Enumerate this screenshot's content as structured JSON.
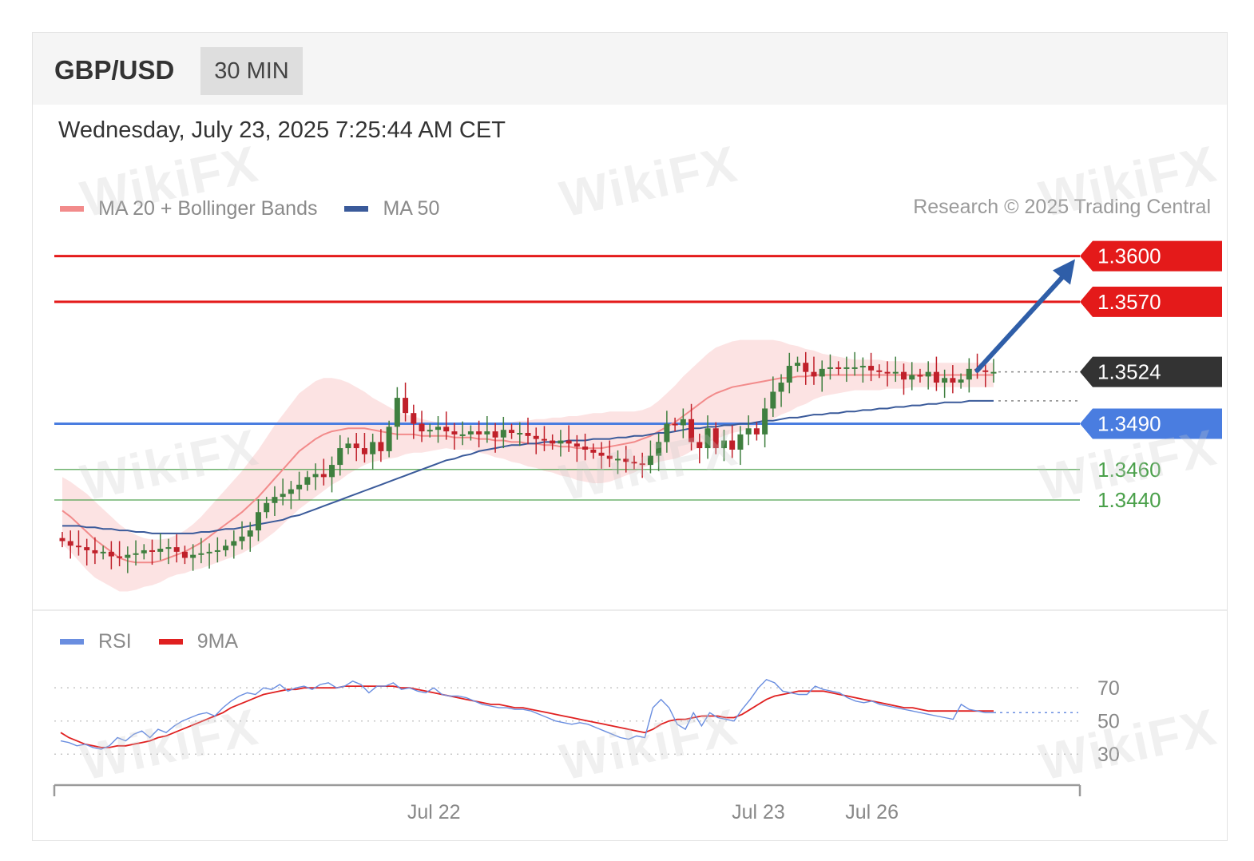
{
  "header": {
    "pair": "GBP/USD",
    "timeframe": "30 MIN"
  },
  "timestamp": "Wednesday, July 23, 2025 7:25:44 AM CET",
  "legend": {
    "ma20": "MA 20 + Bollinger Bands",
    "ma50": "MA 50",
    "credit": "Research © 2025 Trading Central",
    "rsi": "RSI",
    "rsi_ma": "9MA"
  },
  "watermark": "WikiFX",
  "colors": {
    "resistance": "#e41a1a",
    "support": "#4a7de0",
    "minor_support": "#4aa04a",
    "price_tag": "#333333",
    "ma20": "#f28b8b",
    "ma50": "#3a5a9a",
    "band_fill": "#fbdede",
    "candle_up": "#3f7f3f",
    "candle_down": "#c0202a",
    "arrow": "#2f5ea8",
    "rsi": "#6a8ee0",
    "rsi_ma": "#e02020"
  },
  "chart_data": [
    {
      "type": "candlestick",
      "ylim": [
        1.3375,
        1.3615
      ],
      "levels": [
        {
          "label": "1.3600",
          "value": 1.36,
          "kind": "resistance"
        },
        {
          "label": "1.3570",
          "value": 1.357,
          "kind": "resistance"
        },
        {
          "label": "1.3524",
          "value": 1.3524,
          "kind": "current"
        },
        {
          "label": "1.3490",
          "value": 1.349,
          "kind": "support"
        },
        {
          "label": "1.3460",
          "value": 1.346,
          "kind": "minor_support"
        },
        {
          "label": "1.3440",
          "value": 1.344,
          "kind": "minor_support"
        }
      ],
      "ma50_last": 1.3505,
      "arrow": {
        "from": {
          "index": 112,
          "value": 1.3525
        },
        "to": {
          "index": 118,
          "value": 1.3598
        }
      },
      "close": [
        1.3413,
        1.341,
        1.3409,
        1.3407,
        1.3405,
        1.3406,
        1.3403,
        1.3402,
        1.3404,
        1.3405,
        1.3407,
        1.3406,
        1.3408,
        1.3409,
        1.3406,
        1.3402,
        1.3404,
        1.3405,
        1.3406,
        1.3407,
        1.341,
        1.3413,
        1.3416,
        1.342,
        1.3432,
        1.3438,
        1.3442,
        1.3444,
        1.3447,
        1.345,
        1.3455,
        1.3457,
        1.3455,
        1.3463,
        1.3474,
        1.3477,
        1.3474,
        1.347,
        1.3478,
        1.3472,
        1.3488,
        1.3507,
        1.3497,
        1.349,
        1.3485,
        1.3486,
        1.3488,
        1.3485,
        1.3483,
        1.3483,
        1.3485,
        1.3483,
        1.3485,
        1.3481,
        1.3486,
        1.3484,
        1.3484,
        1.3482,
        1.348,
        1.3479,
        1.3477,
        1.3479,
        1.3477,
        1.3475,
        1.3473,
        1.3471,
        1.3469,
        1.3467,
        1.3467,
        1.3465,
        1.3464,
        1.3463,
        1.3469,
        1.3478,
        1.349,
        1.3489,
        1.3493,
        1.3478,
        1.3474,
        1.3487,
        1.3474,
        1.3479,
        1.3473,
        1.3483,
        1.3487,
        1.3483,
        1.35,
        1.3511,
        1.3517,
        1.3528,
        1.353,
        1.3524,
        1.3521,
        1.3526,
        1.3527,
        1.3526,
        1.3527,
        1.3527,
        1.3528,
        1.3525,
        1.3524,
        1.3523,
        1.3524,
        1.3519,
        1.3522,
        1.3521,
        1.3524,
        1.3517,
        1.352,
        1.3517,
        1.3519,
        1.3526,
        1.3525,
        1.3524,
        1.3524
      ],
      "ma20": [
        1.3433,
        1.3429,
        1.3424,
        1.3419,
        1.3414,
        1.341,
        1.3406,
        1.3402,
        1.34,
        1.3399,
        1.3399,
        1.3399,
        1.34,
        1.3402,
        1.3404,
        1.3406,
        1.3409,
        1.3412,
        1.3416,
        1.342,
        1.3424,
        1.3428,
        1.3432,
        1.3437,
        1.3442,
        1.3448,
        1.3454,
        1.346,
        1.3466,
        1.3472,
        1.3476,
        1.348,
        1.3483,
        1.3485,
        1.3486,
        1.3487,
        1.3487,
        1.3487,
        1.3486,
        1.3485,
        1.3484,
        1.3483,
        1.3483,
        1.3483,
        1.3482,
        1.3482,
        1.3482,
        1.3482,
        1.3481,
        1.3481,
        1.3481,
        1.348,
        1.348,
        1.3479,
        1.3479,
        1.3478,
        1.3478,
        1.3477,
        1.3477,
        1.3476,
        1.3476,
        1.3475,
        1.3475,
        1.3474,
        1.3474,
        1.3474,
        1.3474,
        1.3475,
        1.3476,
        1.3477,
        1.3478,
        1.348,
        1.3482,
        1.3485,
        1.3488,
        1.3491,
        1.3495,
        1.3499,
        1.3503,
        1.3507,
        1.351,
        1.3512,
        1.3514,
        1.3515,
        1.3516,
        1.3517,
        1.3518,
        1.3519,
        1.352,
        1.352,
        1.3521,
        1.3521,
        1.3522,
        1.3522,
        1.3522,
        1.3522,
        1.3522,
        1.3522,
        1.3522,
        1.3522,
        1.3522,
        1.3522,
        1.3522,
        1.3522,
        1.3522,
        1.3522,
        1.3522,
        1.3522,
        1.3522,
        1.3522,
        1.3522,
        1.3522,
        1.3522,
        1.3522,
        1.3522
      ],
      "ma50": [
        1.3423,
        1.3423,
        1.3423,
        1.3422,
        1.3422,
        1.3421,
        1.3421,
        1.342,
        1.342,
        1.3419,
        1.3419,
        1.3418,
        1.3418,
        1.3418,
        1.3418,
        1.3418,
        1.3418,
        1.3419,
        1.3419,
        1.342,
        1.3421,
        1.3421,
        1.3422,
        1.3423,
        1.3424,
        1.3425,
        1.3426,
        1.3427,
        1.3429,
        1.343,
        1.3432,
        1.3434,
        1.3436,
        1.3438,
        1.344,
        1.3442,
        1.3444,
        1.3446,
        1.3448,
        1.345,
        1.3452,
        1.3454,
        1.3456,
        1.3458,
        1.346,
        1.3462,
        1.3464,
        1.3466,
        1.3467,
        1.3469,
        1.347,
        1.3472,
        1.3473,
        1.3474,
        1.3475,
        1.3476,
        1.3476,
        1.3477,
        1.3477,
        1.3478,
        1.3478,
        1.3478,
        1.3479,
        1.3479,
        1.3479,
        1.348,
        1.348,
        1.348,
        1.3481,
        1.3481,
        1.3482,
        1.3482,
        1.3483,
        1.3484,
        1.3484,
        1.3485,
        1.3486,
        1.3487,
        1.3487,
        1.3488,
        1.3488,
        1.3489,
        1.3489,
        1.349,
        1.349,
        1.3491,
        1.3492,
        1.3492,
        1.3493,
        1.3494,
        1.3494,
        1.3495,
        1.3496,
        1.3496,
        1.3497,
        1.3497,
        1.3498,
        1.3498,
        1.3499,
        1.3499,
        1.35,
        1.35,
        1.3501,
        1.3501,
        1.3502,
        1.3502,
        1.3503,
        1.3503,
        1.3504,
        1.3504,
        1.3504,
        1.3505,
        1.3505,
        1.3505,
        1.3505
      ],
      "band_width": [
        0.0022,
        0.0023,
        0.0024,
        0.0025,
        0.0025,
        0.0024,
        0.0023,
        0.0022,
        0.002,
        0.0018,
        0.0016,
        0.0015,
        0.0014,
        0.0013,
        0.0013,
        0.0014,
        0.0015,
        0.0017,
        0.0019,
        0.0021,
        0.0023,
        0.0025,
        0.0027,
        0.0029,
        0.0031,
        0.0033,
        0.0035,
        0.0036,
        0.0037,
        0.0038,
        0.0038,
        0.0038,
        0.0037,
        0.0035,
        0.0033,
        0.003,
        0.0027,
        0.0024,
        0.0021,
        0.0019,
        0.0017,
        0.0015,
        0.0013,
        0.0012,
        0.0011,
        0.001,
        0.0009,
        0.0008,
        0.0008,
        0.0008,
        0.0008,
        0.0009,
        0.001,
        0.0011,
        0.0012,
        0.0013,
        0.0014,
        0.0015,
        0.0016,
        0.0017,
        0.0018,
        0.0019,
        0.002,
        0.0021,
        0.0022,
        0.0023,
        0.0023,
        0.0023,
        0.0022,
        0.0021,
        0.002,
        0.0019,
        0.0019,
        0.002,
        0.0022,
        0.0024,
        0.0026,
        0.0027,
        0.0028,
        0.0029,
        0.003,
        0.003,
        0.003,
        0.003,
        0.0029,
        0.0028,
        0.0027,
        0.0026,
        0.0024,
        0.0022,
        0.002,
        0.0018,
        0.0016,
        0.0014,
        0.0013,
        0.0012,
        0.0011,
        0.001,
        0.001,
        0.001,
        0.001,
        0.0009,
        0.0009,
        0.0009,
        0.0008,
        0.0008,
        0.0008,
        0.0008,
        0.0008,
        0.0008,
        0.0008,
        0.0008,
        0.0008,
        0.0008,
        0.0008,
        0.0008,
        0.0008
      ]
    },
    {
      "type": "line",
      "ylim": [
        20,
        85
      ],
      "yticks": [
        "70",
        "50",
        "30"
      ],
      "ytick_values": [
        70,
        50,
        30
      ],
      "xticks": [
        "Jul 22",
        "Jul 23",
        "Jul 26"
      ],
      "xtick_index": [
        46,
        86,
        100
      ],
      "series": [
        {
          "name": "RSI",
          "values": [
            38,
            37,
            35,
            36,
            34,
            33,
            35,
            40,
            38,
            42,
            44,
            40,
            45,
            43,
            47,
            50,
            52,
            54,
            55,
            53,
            58,
            62,
            65,
            67,
            66,
            70,
            69,
            72,
            68,
            70,
            71,
            69,
            72,
            73,
            70,
            71,
            74,
            72,
            67,
            71,
            71,
            73,
            69,
            70,
            68,
            67,
            70,
            66,
            65,
            65,
            64,
            62,
            60,
            59,
            58,
            58,
            57,
            57,
            56,
            54,
            52,
            50,
            49,
            48,
            49,
            48,
            46,
            44,
            42,
            40,
            39,
            41,
            40,
            58,
            63,
            58,
            48,
            45,
            55,
            47,
            55,
            52,
            51,
            50,
            57,
            63,
            70,
            75,
            73,
            68,
            67,
            66,
            66,
            71,
            69,
            68,
            67,
            64,
            62,
            61,
            62,
            60,
            59,
            58,
            57,
            56,
            55,
            54,
            53,
            52,
            51,
            60,
            57,
            56,
            55,
            55
          ]
        },
        {
          "name": "9MA",
          "values": [
            43,
            40,
            38,
            36,
            35,
            34,
            34,
            35,
            35,
            36,
            37,
            38,
            40,
            41,
            43,
            45,
            47,
            49,
            51,
            53,
            55,
            58,
            60,
            62,
            64,
            66,
            67,
            68,
            69,
            69,
            70,
            70,
            70,
            70,
            70,
            71,
            71,
            71,
            71,
            71,
            71,
            71,
            70,
            70,
            69,
            68,
            67,
            66,
            65,
            64,
            63,
            62,
            61,
            60,
            60,
            59,
            58,
            58,
            57,
            56,
            55,
            54,
            53,
            52,
            51,
            50,
            49,
            48,
            47,
            46,
            45,
            44,
            43,
            45,
            48,
            50,
            51,
            51,
            52,
            53,
            53,
            53,
            52,
            52,
            54,
            57,
            60,
            63,
            65,
            66,
            67,
            68,
            68,
            68,
            68,
            67,
            66,
            65,
            64,
            63,
            62,
            61,
            60,
            59,
            58,
            58,
            57,
            56,
            56,
            56,
            56,
            56,
            56,
            56,
            56,
            56
          ]
        }
      ]
    }
  ]
}
